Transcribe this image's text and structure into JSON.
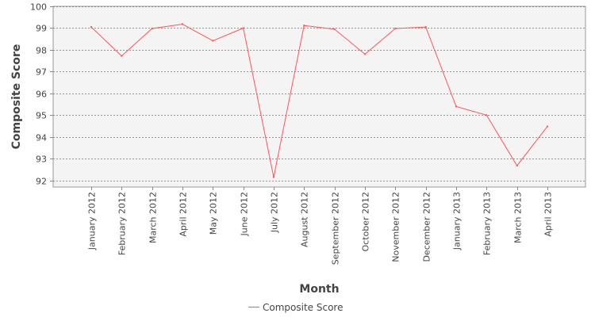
{
  "chart_data": {
    "type": "line",
    "title": "",
    "xlabel": "Month",
    "ylabel": "Composite Score",
    "categories": [
      "January 2012",
      "February 2012",
      "March 2012",
      "April 2012",
      "May 2012",
      "June 2012",
      "July 2012",
      "August 2012",
      "September 2012",
      "October 2012",
      "November 2012",
      "December 2012",
      "January 2013",
      "February 2013",
      "March 2013",
      "April 2013"
    ],
    "series": [
      {
        "name": "Composite Score",
        "color": "#ff5555",
        "values": [
          99.05,
          97.72,
          98.98,
          99.18,
          98.42,
          99.0,
          92.15,
          99.12,
          98.95,
          97.8,
          98.98,
          99.05,
          95.4,
          95.0,
          92.68,
          94.48
        ]
      }
    ],
    "ylim": [
      91.7,
      100
    ],
    "yticks": [
      92,
      93,
      94,
      95,
      96,
      97,
      98,
      99,
      100
    ],
    "grid": true,
    "legend": "bottom-center",
    "plot_background": "#f4f4f4",
    "grid_color": "#777777"
  }
}
